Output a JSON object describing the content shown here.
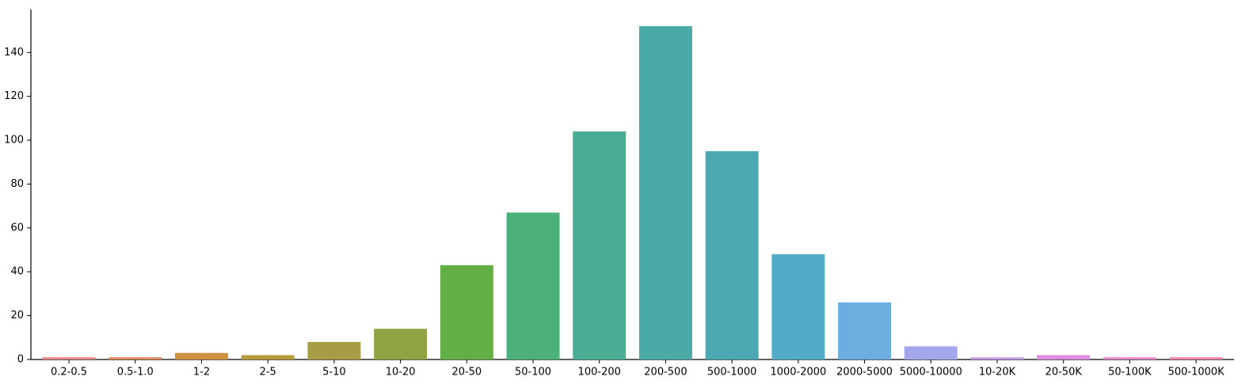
{
  "chart_data": {
    "type": "bar",
    "categories": [
      "0.2-0.5",
      "0.5-1.0",
      "1-2",
      "2-5",
      "5-10",
      "10-20",
      "20-50",
      "50-100",
      "100-200",
      "200-500",
      "500-1000",
      "1000-2000",
      "2000-5000",
      "5000-10000",
      "10-20K",
      "20-50K",
      "50-100K",
      "500-1000K"
    ],
    "values": [
      1,
      1,
      3,
      2,
      8,
      14,
      43,
      67,
      104,
      152,
      95,
      48,
      26,
      6,
      1,
      2,
      1,
      1
    ],
    "colors": [
      "#e8848a",
      "#e0885a",
      "#d0913f",
      "#bb9a3a",
      "#a69d44",
      "#8fa344",
      "#62af45",
      "#4bb07a",
      "#49ad94",
      "#4aaaa5",
      "#4aa9b3",
      "#52abc8",
      "#6daee0",
      "#a4a8ea",
      "#c39de8",
      "#e08de0",
      "#ec86c4",
      "#f283a8"
    ],
    "ylim": [
      0,
      159.6
    ],
    "yticks": [
      0,
      20,
      40,
      60,
      80,
      100,
      120,
      140
    ],
    "grid": false
  }
}
